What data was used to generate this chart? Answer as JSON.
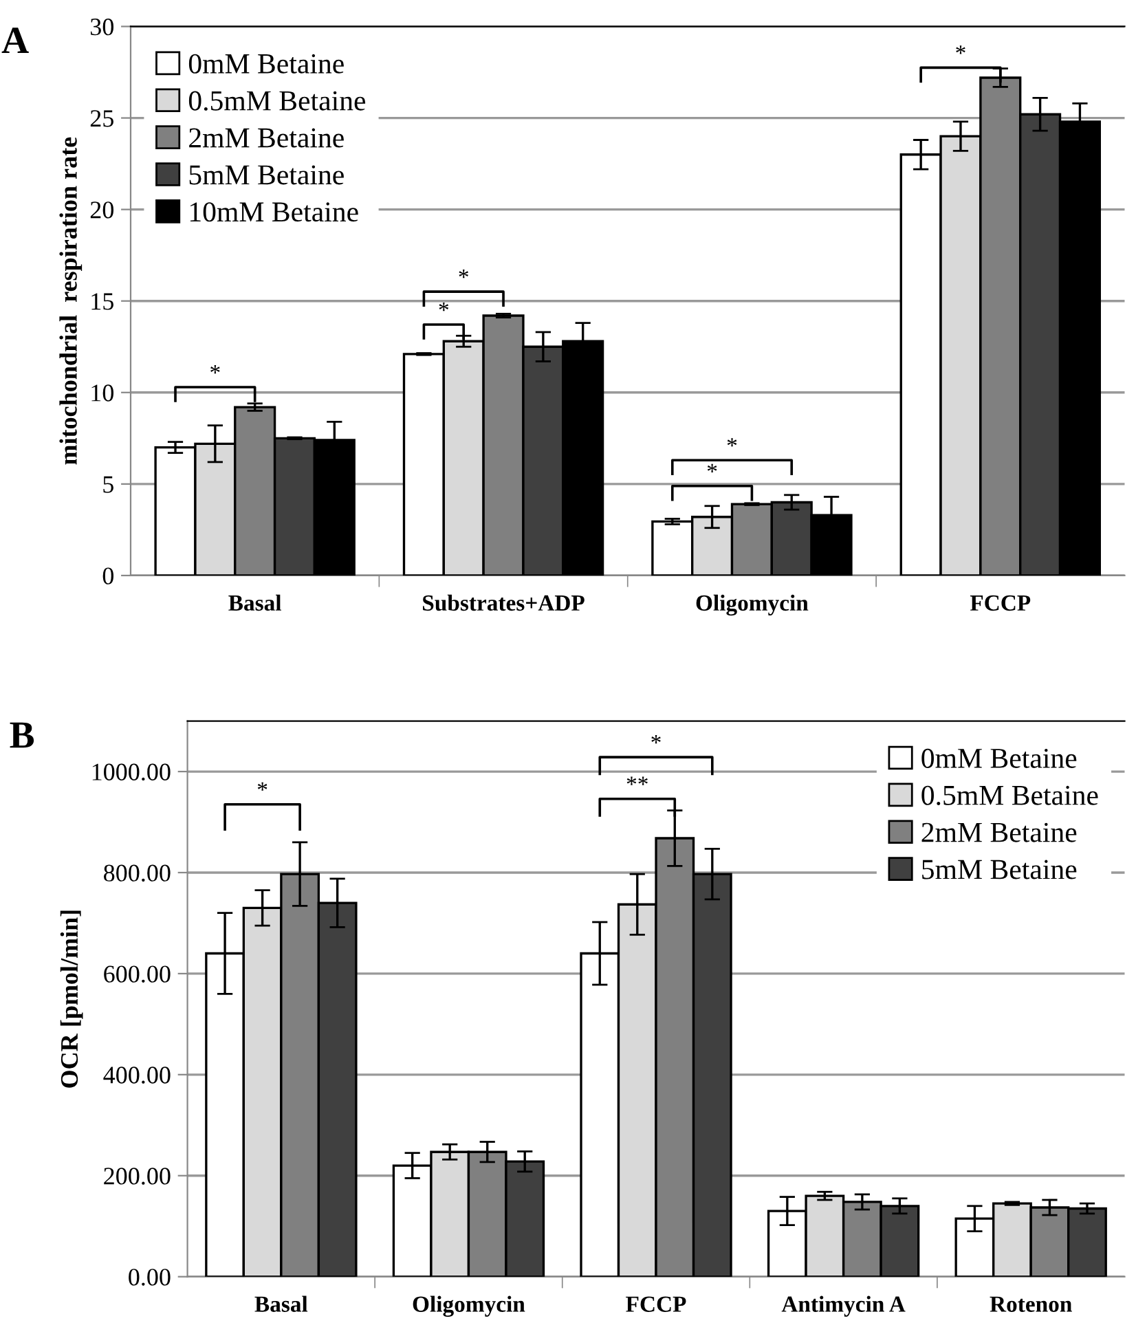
{
  "chart_data": [
    {
      "type": "bar",
      "title": "A",
      "ylabel": "mitochondrial  respiration rate",
      "categories": [
        "Basal",
        "Substrates+ADP",
        "Oligomycin",
        "FCCP"
      ],
      "series": [
        {
          "name": "0mM Betaine",
          "color": "#ffffff",
          "values": [
            7.0,
            12.1,
            2.95,
            23.0
          ],
          "errors": [
            0.3,
            0.05,
            0.15,
            0.8
          ]
        },
        {
          "name": "0.5mM Betaine",
          "color": "#d9d9d9",
          "values": [
            7.2,
            12.8,
            3.2,
            24.0
          ],
          "errors": [
            1.0,
            0.3,
            0.6,
            0.8
          ]
        },
        {
          "name": "2mM Betaine",
          "color": "#808080",
          "values": [
            9.2,
            14.2,
            3.9,
            27.2
          ],
          "errors": [
            0.2,
            0.1,
            0.05,
            0.5
          ]
        },
        {
          "name": "5mM Betaine",
          "color": "#404040",
          "values": [
            7.5,
            12.5,
            4.0,
            25.2
          ],
          "errors": [
            0.05,
            0.8,
            0.4,
            0.9
          ]
        },
        {
          "name": "10mM Betaine",
          "color": "#000000",
          "values": [
            7.4,
            12.8,
            3.3,
            24.8
          ],
          "errors": [
            1.0,
            1.0,
            1.0,
            1.0
          ]
        }
      ],
      "ylim": [
        0,
        30
      ],
      "yticks": [
        0,
        5,
        10,
        15,
        20,
        25,
        30
      ],
      "grid": "y",
      "legend": "top left",
      "annotations": [
        "*",
        "*",
        "*",
        "*",
        "*",
        "*"
      ]
    },
    {
      "type": "bar",
      "title": "B",
      "ylabel": "OCR [pmol/min]",
      "categories": [
        "Basal",
        "Oligomycin",
        "FCCP",
        "Antimycin A",
        "Rotenon"
      ],
      "series": [
        {
          "name": "0mM Betaine",
          "color": "#ffffff",
          "values": [
            640,
            220,
            640,
            130,
            115
          ],
          "errors": [
            80,
            25,
            62,
            28,
            25
          ]
        },
        {
          "name": "0.5mM Betaine",
          "color": "#d9d9d9",
          "values": [
            730,
            247,
            737,
            160,
            145
          ],
          "errors": [
            35,
            15,
            60,
            8,
            3
          ]
        },
        {
          "name": "2mM Betaine",
          "color": "#808080",
          "values": [
            797,
            247,
            868,
            148,
            137
          ],
          "errors": [
            63,
            20,
            55,
            15,
            15
          ]
        },
        {
          "name": "5mM Betaine",
          "color": "#404040",
          "values": [
            740,
            228,
            797,
            140,
            135
          ],
          "errors": [
            48,
            20,
            50,
            15,
            10
          ]
        }
      ],
      "ylim": [
        0,
        1100
      ],
      "yticks": [
        {
          "value": 0,
          "label": "0.00"
        },
        {
          "value": 200,
          "label": "200.00"
        },
        {
          "value": 400,
          "label": "400.00"
        },
        {
          "value": 600,
          "label": "600.00"
        },
        {
          "value": 800,
          "label": "800.00"
        },
        {
          "value": 1000,
          "label": "1000.00"
        }
      ],
      "grid": "y",
      "legend": "top right",
      "annotations": [
        "*",
        "**",
        "*"
      ]
    }
  ]
}
